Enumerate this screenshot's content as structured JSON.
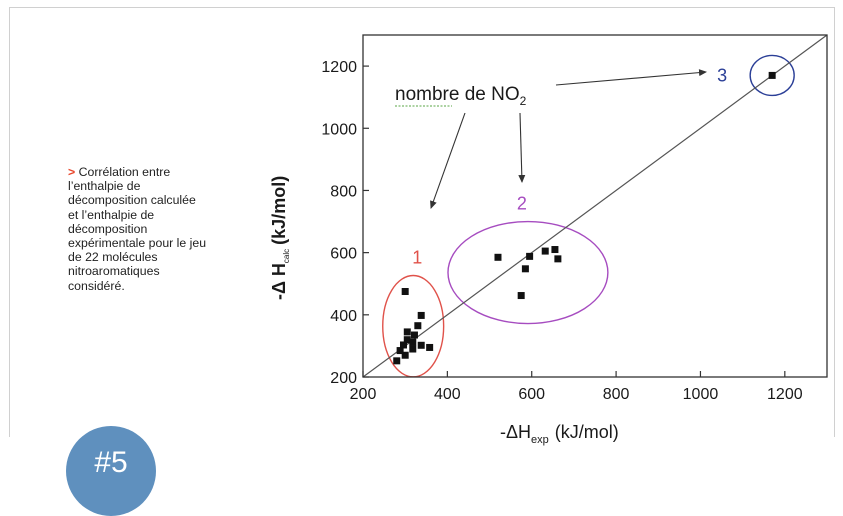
{
  "caption": {
    "marker": ">",
    "text": "Corrélation entre l’enthalpie de décomposition calculée et l’enthalpie de décomposition expérimentale pour le jeu de 22 molécules nitroaromatiques considéré."
  },
  "badge": {
    "text": "#5"
  },
  "chart_data": {
    "type": "scatter",
    "title": "",
    "xlabel": {
      "prefix": "-ΔH",
      "sub": "exp",
      "unit": "(kJ/mol)"
    },
    "ylabel": {
      "prefix": "-Δ H",
      "sub": "calc",
      "unit": "(kJ/mol)"
    },
    "xlim": [
      200,
      1300
    ],
    "ylim": [
      200,
      1300
    ],
    "xticks": [
      200,
      400,
      600,
      800,
      1000,
      1200
    ],
    "yticks": [
      200,
      400,
      600,
      800,
      1000,
      1200
    ],
    "grid": false,
    "reference_line": {
      "from": [
        200,
        200
      ],
      "to": [
        1300,
        1300
      ]
    },
    "annotation": {
      "text": "nombre de NO",
      "sub": "2"
    },
    "groups": [
      {
        "label": "1",
        "color": "#e0524a"
      },
      {
        "label": "2",
        "color": "#a64cc0"
      },
      {
        "label": "3",
        "color": "#2b3f97"
      }
    ],
    "series": [
      {
        "values": [
          [
            300,
            475
          ],
          [
            338,
            398
          ],
          [
            330,
            365
          ],
          [
            305,
            345
          ],
          [
            322,
            335
          ],
          [
            305,
            320
          ],
          [
            318,
            312
          ],
          [
            296,
            303
          ],
          [
            338,
            302
          ],
          [
            358,
            295
          ],
          [
            318,
            290
          ],
          [
            300,
            270
          ],
          [
            288,
            285
          ],
          [
            280,
            252
          ]
        ]
      },
      {
        "values": [
          [
            520,
            585
          ],
          [
            595,
            588
          ],
          [
            632,
            605
          ],
          [
            655,
            610
          ],
          [
            662,
            580
          ],
          [
            585,
            548
          ],
          [
            575,
            462
          ]
        ]
      },
      {
        "values": [
          [
            1170,
            1170
          ]
        ]
      }
    ]
  }
}
